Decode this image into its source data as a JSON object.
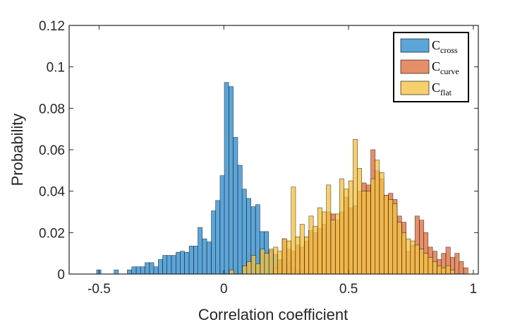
{
  "chart_data": {
    "type": "histogram",
    "xlabel": "Correlation coefficient",
    "ylabel": "Probability",
    "xlim": [
      -0.62,
      1.02
    ],
    "ylim": [
      0,
      0.12
    ],
    "xticks": [
      {
        "value": -0.5,
        "label": "-0.5"
      },
      {
        "value": 0,
        "label": "0"
      },
      {
        "value": 0.5,
        "label": "0.5"
      },
      {
        "value": 1,
        "label": "1"
      }
    ],
    "yticks": [
      {
        "value": 0,
        "label": "0"
      },
      {
        "value": 0.02,
        "label": "0.02"
      },
      {
        "value": 0.04,
        "label": "0.04"
      },
      {
        "value": 0.06,
        "label": "0.06"
      },
      {
        "value": 0.08,
        "label": "0.08"
      },
      {
        "value": 0.1,
        "label": "0.1"
      },
      {
        "value": 0.12,
        "label": "0.12"
      }
    ],
    "legend_position": "top-right",
    "series": [
      {
        "name": "C_cross",
        "legend_main": "C",
        "legend_sub": "cross",
        "color": "#4a9bd4",
        "opacity": 0.9,
        "bin_width": 0.0177,
        "bins": [
          [
            -0.51,
            0.002
          ],
          [
            -0.493,
            0.0
          ],
          [
            -0.475,
            0.0
          ],
          [
            -0.457,
            0.0
          ],
          [
            -0.44,
            0.002
          ],
          [
            -0.422,
            0.0
          ],
          [
            -0.404,
            0.0
          ],
          [
            -0.387,
            0.002
          ],
          [
            -0.369,
            0.0035
          ],
          [
            -0.351,
            0.0035
          ],
          [
            -0.334,
            0.0035
          ],
          [
            -0.316,
            0.0055
          ],
          [
            -0.298,
            0.0055
          ],
          [
            -0.281,
            0.0035
          ],
          [
            -0.263,
            0.007
          ],
          [
            -0.245,
            0.009
          ],
          [
            -0.228,
            0.009
          ],
          [
            -0.21,
            0.009
          ],
          [
            -0.192,
            0.0105
          ],
          [
            -0.175,
            0.011
          ],
          [
            -0.157,
            0.0105
          ],
          [
            -0.139,
            0.0135
          ],
          [
            -0.121,
            0.0135
          ],
          [
            -0.104,
            0.0225
          ],
          [
            -0.086,
            0.017
          ],
          [
            -0.068,
            0.0155
          ],
          [
            -0.05,
            0.0305
          ],
          [
            -0.033,
            0.0355
          ],
          [
            -0.015,
            0.0475
          ],
          [
            0.002,
            0.0925
          ],
          [
            0.02,
            0.0905
          ],
          [
            0.038,
            0.066
          ],
          [
            0.056,
            0.0525
          ],
          [
            0.073,
            0.041
          ],
          [
            0.091,
            0.0365
          ],
          [
            0.109,
            0.0325
          ],
          [
            0.127,
            0.0335
          ],
          [
            0.144,
            0.0205
          ],
          [
            0.162,
            0.0205
          ],
          [
            0.18,
            0.0115
          ],
          [
            0.197,
            0.0095
          ],
          [
            0.215,
            0.0065
          ],
          [
            0.233,
            0.0075
          ],
          [
            0.251,
            0.0055
          ],
          [
            0.268,
            0.0035
          ],
          [
            0.286,
            0.002
          ],
          [
            0.304,
            0.002
          ],
          [
            0.321,
            0.0
          ]
        ]
      },
      {
        "name": "C_curve",
        "legend_main": "C",
        "legend_sub": "curve",
        "color": "#e07b4f",
        "opacity": 0.85,
        "bin_width": 0.0177,
        "bins": [
          [
            0.198,
            0.003
          ],
          [
            0.216,
            0.007
          ],
          [
            0.234,
            0.017
          ],
          [
            0.251,
            0.012
          ],
          [
            0.269,
            0.011
          ],
          [
            0.287,
            0.014
          ],
          [
            0.305,
            0.013
          ],
          [
            0.322,
            0.016
          ],
          [
            0.34,
            0.021
          ],
          [
            0.358,
            0.02
          ],
          [
            0.376,
            0.022
          ],
          [
            0.393,
            0.024
          ],
          [
            0.411,
            0.03
          ],
          [
            0.429,
            0.029
          ],
          [
            0.447,
            0.026
          ],
          [
            0.464,
            0.03
          ],
          [
            0.482,
            0.037
          ],
          [
            0.5,
            0.032
          ],
          [
            0.518,
            0.033
          ],
          [
            0.535,
            0.04
          ],
          [
            0.553,
            0.044
          ],
          [
            0.571,
            0.043
          ],
          [
            0.589,
            0.06
          ],
          [
            0.606,
            0.05
          ],
          [
            0.624,
            0.046
          ],
          [
            0.642,
            0.038
          ],
          [
            0.66,
            0.039
          ],
          [
            0.677,
            0.036
          ],
          [
            0.695,
            0.028
          ],
          [
            0.713,
            0.025
          ],
          [
            0.731,
            0.011
          ],
          [
            0.748,
            0.014
          ],
          [
            0.766,
            0.028
          ],
          [
            0.784,
            0.026
          ],
          [
            0.801,
            0.02
          ],
          [
            0.819,
            0.013
          ],
          [
            0.837,
            0.011
          ],
          [
            0.855,
            0.007
          ],
          [
            0.872,
            0.01
          ],
          [
            0.89,
            0.013
          ],
          [
            0.908,
            0.008
          ],
          [
            0.926,
            0.01
          ],
          [
            0.943,
            0.006
          ],
          [
            0.961,
            0.003
          ]
        ]
      },
      {
        "name": "C_flat",
        "legend_main": "C",
        "legend_sub": "flat",
        "color": "#f5c242",
        "opacity": 0.78,
        "bin_width": 0.0177,
        "bins": [
          [
            -0.03,
            0.0
          ],
          [
            -0.013,
            0.0
          ],
          [
            0.004,
            0.0
          ],
          [
            0.022,
            0.002
          ],
          [
            0.039,
            0.0
          ],
          [
            0.057,
            0.0
          ],
          [
            0.075,
            0.004
          ],
          [
            0.092,
            0.006
          ],
          [
            0.11,
            0.009
          ],
          [
            0.128,
            0.005
          ],
          [
            0.146,
            0.012
          ],
          [
            0.163,
            0.01
          ],
          [
            0.181,
            0.012
          ],
          [
            0.199,
            0.013
          ],
          [
            0.216,
            0.011
          ],
          [
            0.234,
            0.017
          ],
          [
            0.252,
            0.016
          ],
          [
            0.27,
            0.042
          ],
          [
            0.287,
            0.018
          ],
          [
            0.305,
            0.024
          ],
          [
            0.323,
            0.018
          ],
          [
            0.341,
            0.028
          ],
          [
            0.358,
            0.023
          ],
          [
            0.376,
            0.032
          ],
          [
            0.394,
            0.03
          ],
          [
            0.411,
            0.043
          ],
          [
            0.429,
            0.026
          ],
          [
            0.447,
            0.029
          ],
          [
            0.464,
            0.046
          ],
          [
            0.482,
            0.041
          ],
          [
            0.5,
            0.045
          ],
          [
            0.518,
            0.065
          ],
          [
            0.535,
            0.051
          ],
          [
            0.553,
            0.04
          ],
          [
            0.571,
            0.04
          ],
          [
            0.589,
            0.046
          ],
          [
            0.606,
            0.055
          ],
          [
            0.624,
            0.049
          ],
          [
            0.642,
            0.038
          ],
          [
            0.66,
            0.036
          ],
          [
            0.677,
            0.034
          ],
          [
            0.695,
            0.025
          ],
          [
            0.713,
            0.02
          ],
          [
            0.731,
            0.017
          ],
          [
            0.748,
            0.016
          ],
          [
            0.766,
            0.014
          ],
          [
            0.784,
            0.012
          ],
          [
            0.801,
            0.01
          ],
          [
            0.819,
            0.008
          ],
          [
            0.837,
            0.006
          ],
          [
            0.855,
            0.004
          ],
          [
            0.872,
            0.003
          ],
          [
            0.89,
            0.004
          ],
          [
            0.908,
            0.002
          ]
        ]
      }
    ]
  }
}
